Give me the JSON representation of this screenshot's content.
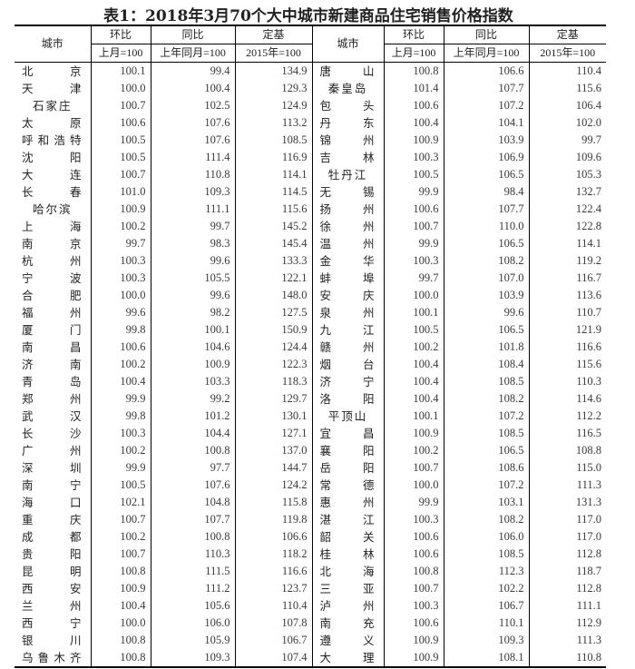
{
  "title": "表1：2018年3月70个大中城市新建商品住宅销售价格指数",
  "headers": {
    "city": "城市",
    "mom": "环比",
    "yoy": "同比",
    "base": "定基",
    "mom_sub": "上月=100",
    "yoy_sub": "上年同月=100",
    "base_sub": "2015年=100"
  },
  "left_rows": [
    [
      "北京",
      "100.1",
      "99.4",
      "134.9"
    ],
    [
      "天津",
      "100.0",
      "100.4",
      "129.3"
    ],
    [
      "石家庄",
      "100.7",
      "102.5",
      "124.9"
    ],
    [
      "太原",
      "100.6",
      "107.6",
      "113.2"
    ],
    [
      "呼和浩特",
      "100.5",
      "107.6",
      "108.5"
    ],
    [
      "沈阳",
      "100.5",
      "111.4",
      "116.9"
    ],
    [
      "大连",
      "100.7",
      "110.8",
      "114.1"
    ],
    [
      "长春",
      "101.0",
      "109.3",
      "114.5"
    ],
    [
      "哈尔滨",
      "100.9",
      "111.1",
      "115.6"
    ],
    [
      "上海",
      "100.2",
      "99.7",
      "145.2"
    ],
    [
      "南京",
      "99.7",
      "98.3",
      "145.4"
    ],
    [
      "杭州",
      "100.3",
      "99.6",
      "133.3"
    ],
    [
      "宁波",
      "100.3",
      "105.5",
      "122.1"
    ],
    [
      "合肥",
      "100.0",
      "99.6",
      "148.0"
    ],
    [
      "福州",
      "99.6",
      "98.2",
      "127.5"
    ],
    [
      "厦门",
      "99.8",
      "100.1",
      "150.9"
    ],
    [
      "南昌",
      "100.6",
      "104.6",
      "124.4"
    ],
    [
      "济南",
      "100.2",
      "100.9",
      "122.3"
    ],
    [
      "青岛",
      "100.4",
      "103.3",
      "118.3"
    ],
    [
      "郑州",
      "99.9",
      "99.2",
      "129.7"
    ],
    [
      "武汉",
      "99.8",
      "101.2",
      "130.1"
    ],
    [
      "长沙",
      "100.3",
      "104.4",
      "127.1"
    ],
    [
      "广州",
      "100.2",
      "100.8",
      "137.0"
    ],
    [
      "深圳",
      "99.9",
      "97.7",
      "144.7"
    ],
    [
      "南宁",
      "100.5",
      "107.6",
      "124.2"
    ],
    [
      "海口",
      "102.1",
      "104.8",
      "115.8"
    ],
    [
      "重庆",
      "100.7",
      "107.7",
      "119.8"
    ],
    [
      "成都",
      "100.2",
      "100.8",
      "106.6"
    ],
    [
      "贵阳",
      "100.7",
      "110.3",
      "118.2"
    ],
    [
      "昆明",
      "100.8",
      "111.5",
      "116.6"
    ],
    [
      "西安",
      "100.9",
      "111.2",
      "123.7"
    ],
    [
      "兰州",
      "100.4",
      "105.6",
      "110.4"
    ],
    [
      "西宁",
      "100.0",
      "106.0",
      "107.8"
    ],
    [
      "银川",
      "100.8",
      "105.9",
      "106.7"
    ],
    [
      "乌鲁木齐",
      "100.8",
      "109.3",
      "107.4"
    ]
  ],
  "right_rows": [
    [
      "唐山",
      "100.8",
      "106.6",
      "110.4"
    ],
    [
      "秦皇岛",
      "101.4",
      "107.7",
      "115.6"
    ],
    [
      "包头",
      "100.6",
      "107.2",
      "106.4"
    ],
    [
      "丹东",
      "100.4",
      "104.1",
      "102.0"
    ],
    [
      "锦州",
      "100.9",
      "103.9",
      "99.7"
    ],
    [
      "吉林",
      "100.3",
      "106.9",
      "109.6"
    ],
    [
      "牡丹江",
      "100.5",
      "106.5",
      "105.3"
    ],
    [
      "无锡",
      "99.9",
      "98.4",
      "132.7"
    ],
    [
      "扬州",
      "100.6",
      "107.7",
      "122.4"
    ],
    [
      "徐州",
      "100.7",
      "110.0",
      "122.8"
    ],
    [
      "温州",
      "99.9",
      "106.5",
      "114.1"
    ],
    [
      "金华",
      "100.3",
      "108.2",
      "119.2"
    ],
    [
      "蚌埠",
      "99.7",
      "107.0",
      "116.7"
    ],
    [
      "安庆",
      "100.0",
      "103.9",
      "113.6"
    ],
    [
      "泉州",
      "100.1",
      "99.6",
      "110.7"
    ],
    [
      "九江",
      "100.5",
      "106.5",
      "121.9"
    ],
    [
      "赣州",
      "100.2",
      "101.8",
      "116.6"
    ],
    [
      "烟台",
      "100.4",
      "108.4",
      "115.6"
    ],
    [
      "济宁",
      "100.4",
      "108.5",
      "110.3"
    ],
    [
      "洛阳",
      "100.4",
      "108.2",
      "114.6"
    ],
    [
      "平顶山",
      "100.1",
      "107.2",
      "112.2"
    ],
    [
      "宜昌",
      "100.9",
      "108.5",
      "116.5"
    ],
    [
      "襄阳",
      "100.2",
      "106.5",
      "108.8"
    ],
    [
      "岳阳",
      "100.7",
      "108.6",
      "115.0"
    ],
    [
      "常德",
      "100.0",
      "107.2",
      "111.3"
    ],
    [
      "惠州",
      "99.9",
      "103.1",
      "131.3"
    ],
    [
      "湛江",
      "100.3",
      "108.2",
      "117.0"
    ],
    [
      "韶关",
      "100.6",
      "106.0",
      "117.0"
    ],
    [
      "桂林",
      "100.6",
      "108.5",
      "112.8"
    ],
    [
      "北海",
      "100.8",
      "112.3",
      "118.7"
    ],
    [
      "三亚",
      "100.7",
      "102.2",
      "112.8"
    ],
    [
      "泸州",
      "100.3",
      "106.7",
      "111.1"
    ],
    [
      "南充",
      "100.6",
      "110.1",
      "112.9"
    ],
    [
      "遵义",
      "100.9",
      "109.3",
      "111.3"
    ],
    [
      "大理",
      "100.9",
      "108.1",
      "110.8"
    ]
  ]
}
